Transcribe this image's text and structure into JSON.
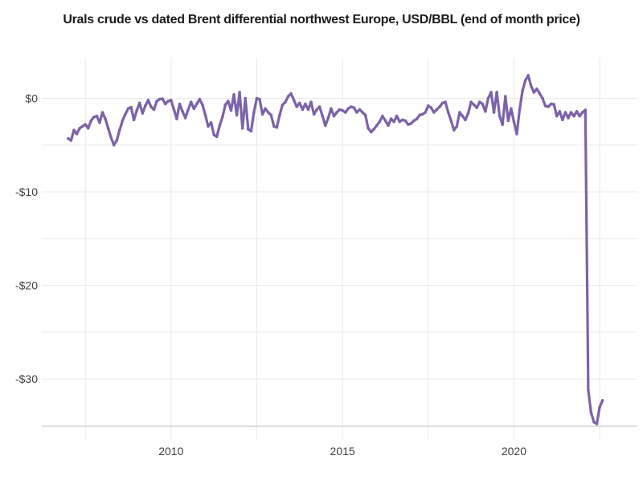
{
  "chart_data": {
    "type": "line",
    "title": "Urals crude vs dated Brent differential northwest Europe, USD/BBL (end of month price)",
    "frequency": "monthly_end_of_month",
    "x_start": {
      "year": 2007,
      "month": 1
    },
    "x_end": {
      "year": 2022,
      "month": 8
    },
    "series": [
      {
        "name": "Urals crude vs dated Brent differential (USD/BBL)",
        "color": "#7c62a8",
        "values": [
          -4.3,
          -4.5,
          -3.4,
          -3.8,
          -3.2,
          -3.0,
          -2.8,
          -3.2,
          -2.4,
          -2.0,
          -1.9,
          -2.6,
          -1.5,
          -2.2,
          -3.2,
          -4.2,
          -5.0,
          -4.5,
          -3.4,
          -2.4,
          -1.7,
          -1.1,
          -0.95,
          -2.3,
          -1.3,
          -0.5,
          -1.6,
          -0.8,
          -0.2,
          -0.9,
          -1.2,
          -0.3,
          -0.1,
          -0.05,
          -0.6,
          -0.3,
          -0.2,
          -1.2,
          -2.2,
          -0.6,
          -1.4,
          -2.1,
          -1.2,
          -0.4,
          -1.1,
          -0.6,
          -0.1,
          -0.7,
          -1.8,
          -3.0,
          -2.6,
          -3.9,
          -4.1,
          -2.9,
          -2.0,
          -0.7,
          -0.3,
          -1.3,
          0.4,
          -1.8,
          0.65,
          -3.2,
          0.0,
          -3.3,
          -3.5,
          -1.5,
          0.0,
          -0.1,
          -1.7,
          -1.1,
          -1.5,
          -1.8,
          -3.0,
          -3.1,
          -1.8,
          -0.7,
          -0.4,
          0.2,
          0.5,
          -0.2,
          -0.9,
          -0.5,
          -1.2,
          -0.6,
          -1.2,
          -0.4,
          -1.7,
          -1.2,
          -0.9,
          -1.9,
          -2.9,
          -2.1,
          -1.1,
          -1.9,
          -1.5,
          -1.2,
          -1.3,
          -1.5,
          -1.1,
          -0.9,
          -1.0,
          -1.5,
          -1.2,
          -1.5,
          -1.8,
          -3.2,
          -3.6,
          -3.3,
          -2.9,
          -2.5,
          -1.9,
          -2.4,
          -2.9,
          -2.2,
          -2.5,
          -1.9,
          -2.5,
          -2.3,
          -2.4,
          -2.8,
          -2.7,
          -2.4,
          -2.2,
          -1.8,
          -1.7,
          -1.5,
          -0.8,
          -1.0,
          -1.5,
          -1.2,
          -0.9,
          -0.5,
          -0.4,
          -1.5,
          -2.4,
          -3.4,
          -3.0,
          -1.5,
          -1.9,
          -2.3,
          -1.6,
          -0.4,
          -0.7,
          -1.0,
          -0.4,
          -0.6,
          -1.4,
          0.0,
          0.65,
          -1.5,
          0.65,
          -1.9,
          -2.8,
          0.2,
          -2.4,
          -1.1,
          -2.5,
          -3.8,
          -1.2,
          0.8,
          1.9,
          2.45,
          1.3,
          0.65,
          1.0,
          0.5,
          0.0,
          -0.8,
          -0.9,
          -0.6,
          -0.65,
          -1.9,
          -1.4,
          -2.3,
          -1.5,
          -2.1,
          -1.5,
          -1.9,
          -1.4,
          -1.9,
          -1.5,
          -1.25,
          -31.2,
          -33.6,
          -34.6,
          -34.8,
          -33.0,
          -32.3
        ]
      }
    ],
    "xlim": [
      2006.23,
      2023.6
    ],
    "ylim": [
      -35.05,
      4.33
    ],
    "x_ticks": [
      {
        "value": 2010,
        "label": "2010"
      },
      {
        "value": 2015,
        "label": "2015"
      },
      {
        "value": 2020,
        "label": "2020"
      }
    ],
    "x_gridlines": [
      2007.5,
      2010,
      2012.5,
      2015,
      2017.5,
      2020,
      2022.5
    ],
    "y_ticks": [
      {
        "value": 0,
        "label": "$0"
      },
      {
        "value": -10,
        "label": "-$10"
      },
      {
        "value": -20,
        "label": "-$20"
      },
      {
        "value": -30,
        "label": "-$30"
      }
    ],
    "y_gridlines": [
      0,
      -5,
      -10,
      -15,
      -20,
      -25,
      -30
    ],
    "grid": true,
    "legend": false,
    "colors": {
      "line": "#7c62a8",
      "grid": "#e9e9e9",
      "axis_line": "#cccccc",
      "tick_label": "#404040",
      "title": "#1a1a1a",
      "background": "#ffffff"
    }
  }
}
